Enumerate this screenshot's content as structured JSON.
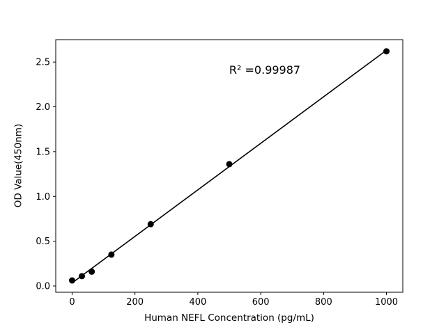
{
  "figure": {
    "background": "#ffffff"
  },
  "chart_data": {
    "type": "scatter",
    "title": "",
    "xlabel": "Human NEFL Concentration (pg/mL)",
    "ylabel": "OD Value(450nm)",
    "annotation": {
      "text": "R² =0.99987"
    },
    "x": [
      0,
      31.25,
      62.5,
      125,
      250,
      500,
      1000
    ],
    "y": [
      0.062,
      0.11,
      0.16,
      0.35,
      0.69,
      1.36,
      2.62
    ],
    "xlim": [
      -52,
      1052
    ],
    "ylim": [
      -0.07,
      2.75
    ],
    "xticks": {
      "values": [
        0,
        200,
        400,
        600,
        800,
        1000
      ],
      "labels": [
        "0",
        "200",
        "400",
        "600",
        "800",
        "1000"
      ]
    },
    "yticks": {
      "values": [
        0.0,
        0.5,
        1.0,
        1.5,
        2.0,
        2.5
      ],
      "labels": [
        "0.0",
        "0.5",
        "1.0",
        "1.5",
        "2.0",
        "2.5"
      ]
    },
    "marker_color": "#000000",
    "line_color": "#000000",
    "grid": false,
    "legend": false,
    "fit": "linear"
  }
}
